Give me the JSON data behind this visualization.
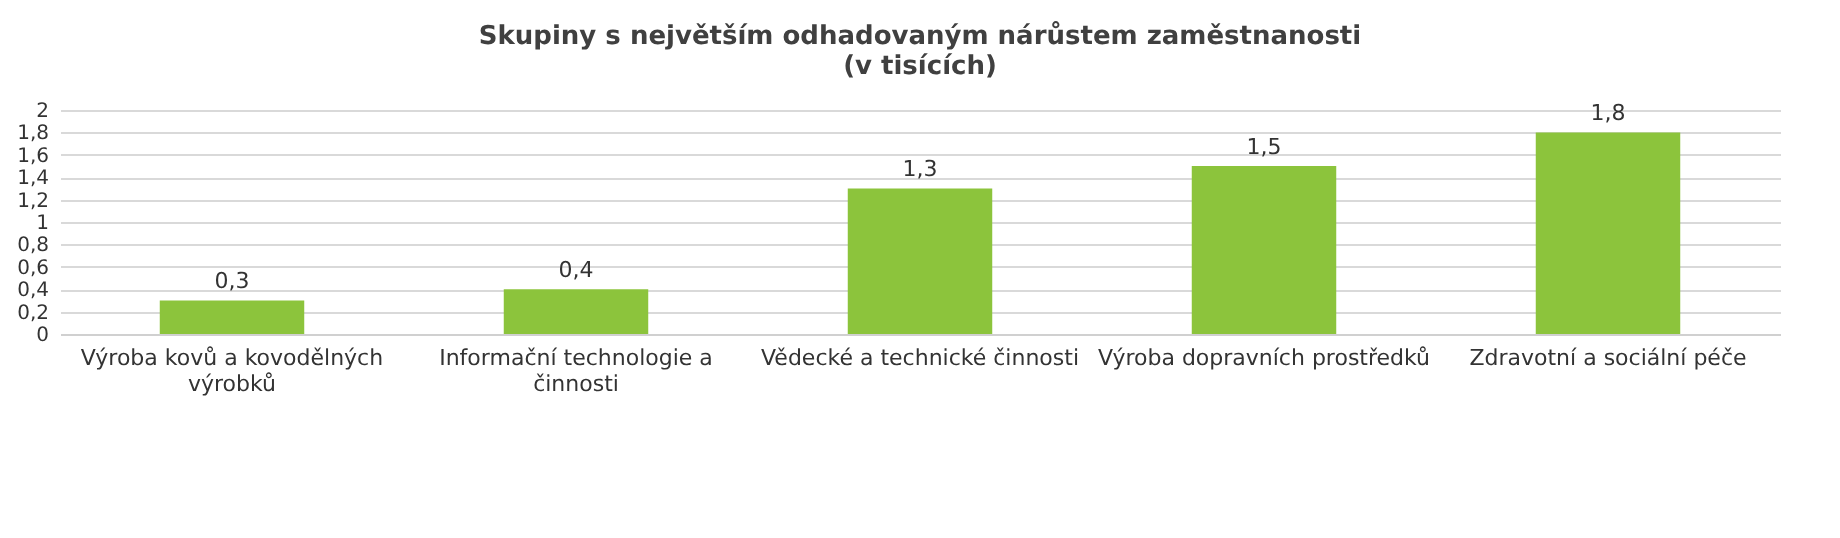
{
  "chart_data": {
    "type": "bar",
    "title": "Skupiny s největším odhadovaným nárůstem zaměstnanosti",
    "subtitle": "(v tisících)",
    "categories": [
      "Výroba kovů a kovodělných výrobků",
      "Informační technologie a činnosti",
      "Vědecké a technické činnosti",
      "Výroba dopravních prostředků",
      "Zdravotní a sociální péče"
    ],
    "values": [
      0.3,
      0.4,
      1.3,
      1.5,
      1.8
    ],
    "value_labels": [
      "0,3",
      "0,4",
      "1,3",
      "1,5",
      "1,8"
    ],
    "color": "#8cc43c",
    "ylim": [
      0,
      2
    ],
    "yticks": [
      0,
      {
        "value": 0.2,
        "label": "0,2"
      },
      {
        "value": 0.4,
        "label": "0,4"
      },
      {
        "value": 0.6,
        "label": "0,6"
      },
      {
        "value": 0.8,
        "label": "0,8"
      },
      1,
      {
        "value": 1.2,
        "label": "1,2"
      },
      {
        "value": 1.4,
        "label": "1,4"
      },
      {
        "value": 1.6,
        "label": "1,6"
      },
      {
        "value": 1.8,
        "label": "1,8"
      },
      2
    ],
    "grid": "y"
  }
}
